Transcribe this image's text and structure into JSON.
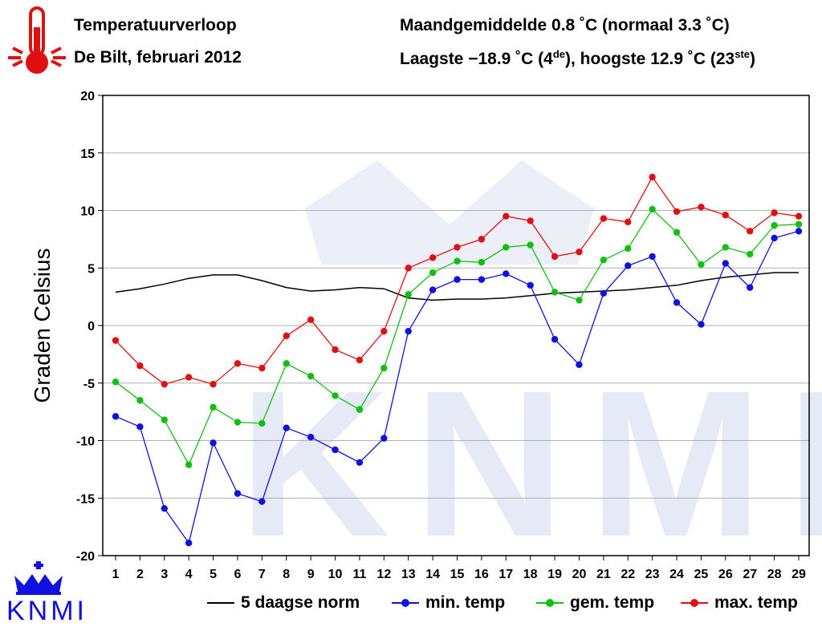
{
  "header": {
    "title": "Temperatuurverloop",
    "location": "De Bilt, februari 2012",
    "monthly": "Maandgemiddelde 0.8 ˚C (normaal 3.3 ˚C)",
    "extremes_a": "Laagste −18.9 ˚C (4",
    "extremes_a_sup": "de",
    "extremes_b": "), hoogste 12.9 ˚C (23",
    "extremes_b_sup": "ste",
    "extremes_c": ")"
  },
  "logo": {
    "text": "KNMI",
    "icon": "crown-icon"
  },
  "watermark": "KNMI",
  "colors": {
    "norm": "#000000",
    "min": "#1010e0",
    "gem": "#10c010",
    "max": "#e01010",
    "grid": "#b0b0b0",
    "logo": "#1010e0",
    "thermo": "#e01010"
  },
  "chart_data": {
    "type": "line",
    "ylabel": "Graden Celsius",
    "ylim": [
      -20,
      20
    ],
    "yticks": [
      20,
      15,
      10,
      5,
      0,
      -5,
      -10,
      -15,
      -20
    ],
    "x": [
      1,
      2,
      3,
      4,
      5,
      6,
      7,
      8,
      9,
      10,
      11,
      12,
      13,
      14,
      15,
      16,
      17,
      18,
      19,
      20,
      21,
      22,
      23,
      24,
      25,
      26,
      27,
      28,
      29
    ],
    "grid": true,
    "legend_position": "bottom",
    "series": [
      {
        "name": "5 daagse norm",
        "key": "norm",
        "markers": false,
        "values": [
          2.9,
          3.2,
          3.6,
          4.1,
          4.4,
          4.4,
          3.9,
          3.3,
          3.0,
          3.1,
          3.3,
          3.2,
          2.4,
          2.2,
          2.3,
          2.3,
          2.4,
          2.6,
          2.8,
          2.9,
          3.0,
          3.1,
          3.3,
          3.5,
          3.9,
          4.2,
          4.4,
          4.6,
          4.6
        ]
      },
      {
        "name": "min. temp",
        "key": "min",
        "markers": true,
        "values": [
          -7.9,
          -8.8,
          -15.9,
          -18.9,
          -10.2,
          -14.6,
          -15.3,
          -8.9,
          -9.7,
          -10.8,
          -11.9,
          -9.8,
          -0.5,
          3.1,
          4.0,
          4.0,
          4.5,
          3.5,
          -1.2,
          -3.4,
          2.8,
          5.2,
          6.0,
          2.0,
          0.1,
          5.4,
          3.3,
          7.6,
          8.2
        ]
      },
      {
        "name": "gem. temp",
        "key": "gem",
        "markers": true,
        "values": [
          -4.9,
          -6.5,
          -8.2,
          -12.1,
          -7.1,
          -8.4,
          -8.5,
          -3.3,
          -4.4,
          -6.1,
          -7.3,
          -3.7,
          2.7,
          4.6,
          5.6,
          5.5,
          6.8,
          7.0,
          2.9,
          2.2,
          5.7,
          6.7,
          10.1,
          8.1,
          5.3,
          6.8,
          6.2,
          8.7,
          8.8
        ]
      },
      {
        "name": "max. temp",
        "key": "max",
        "markers": true,
        "values": [
          -1.3,
          -3.5,
          -5.1,
          -4.5,
          -5.1,
          -3.3,
          -3.7,
          -0.9,
          0.5,
          -2.1,
          -3.0,
          -0.5,
          5.0,
          5.9,
          6.8,
          7.5,
          9.5,
          9.1,
          6.0,
          6.4,
          9.3,
          9.0,
          12.9,
          9.9,
          10.3,
          9.6,
          8.2,
          9.8,
          9.5
        ]
      }
    ]
  }
}
